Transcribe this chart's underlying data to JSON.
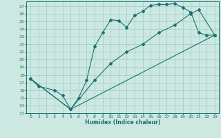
{
  "xlabel": "Humidex (Indice chaleur)",
  "bg_color": "#cce8e0",
  "grid_color": "#99cccc",
  "line_color": "#1a7070",
  "line1_x": [
    0,
    1,
    3,
    4,
    5,
    6,
    7,
    8,
    9,
    10,
    11,
    12,
    13,
    14,
    15,
    16,
    17,
    18,
    19,
    20,
    21,
    22,
    23
  ],
  "line1_y": [
    17.5,
    16.5,
    16.0,
    15.3,
    13.5,
    15.0,
    17.3,
    21.7,
    23.5,
    25.2,
    25.1,
    24.2,
    25.8,
    26.3,
    27.1,
    27.2,
    27.2,
    27.3,
    26.8,
    26.2,
    23.5,
    23.2,
    23.2
  ],
  "line2_x": [
    0,
    5,
    8,
    10,
    12,
    14,
    16,
    18,
    20,
    21,
    23
  ],
  "line2_y": [
    17.5,
    13.5,
    17.3,
    19.5,
    21.0,
    22.0,
    23.5,
    24.5,
    26.0,
    26.5,
    23.2
  ],
  "line3_x": [
    0,
    5,
    23
  ],
  "line3_y": [
    17.5,
    13.5,
    23.2
  ],
  "xlim": [
    -0.5,
    23.5
  ],
  "ylim": [
    13,
    27.6
  ],
  "xticks": [
    0,
    1,
    2,
    3,
    4,
    5,
    6,
    7,
    8,
    9,
    10,
    11,
    12,
    13,
    14,
    15,
    16,
    17,
    18,
    19,
    20,
    21,
    22,
    23
  ],
  "yticks": [
    13,
    14,
    15,
    16,
    17,
    18,
    19,
    20,
    21,
    22,
    23,
    24,
    25,
    26,
    27
  ]
}
